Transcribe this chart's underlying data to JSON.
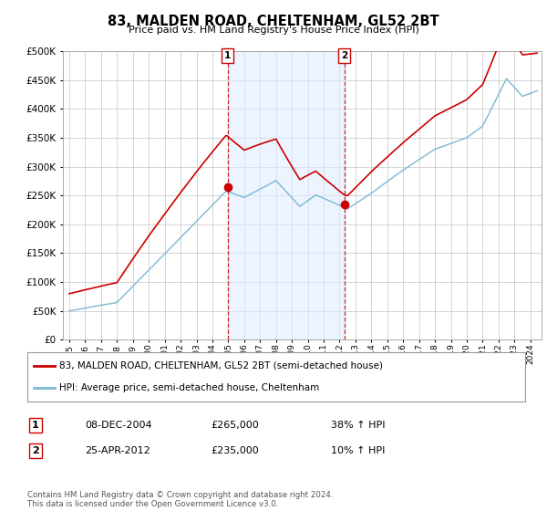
{
  "title": "83, MALDEN ROAD, CHELTENHAM, GL52 2BT",
  "subtitle": "Price paid vs. HM Land Registry's House Price Index (HPI)",
  "legend_line1": "83, MALDEN ROAD, CHELTENHAM, GL52 2BT (semi-detached house)",
  "legend_line2": "HPI: Average price, semi-detached house, Cheltenham",
  "annotation1_date": "08-DEC-2004",
  "annotation1_price": "£265,000",
  "annotation1_pct": "38% ↑ HPI",
  "annotation2_date": "25-APR-2012",
  "annotation2_price": "£235,000",
  "annotation2_pct": "10% ↑ HPI",
  "footer": "Contains HM Land Registry data © Crown copyright and database right 2024.\nThis data is licensed under the Open Government Licence v3.0.",
  "hpi_color": "#7bb8d4",
  "price_color": "#cc0000",
  "ylim": [
    0,
    500000
  ],
  "background_color": "#ffffff",
  "grid_color": "#cccccc",
  "sale1_year": 2004.958,
  "sale2_year": 2012.292,
  "sale1_price": 265000,
  "sale2_price": 235000
}
